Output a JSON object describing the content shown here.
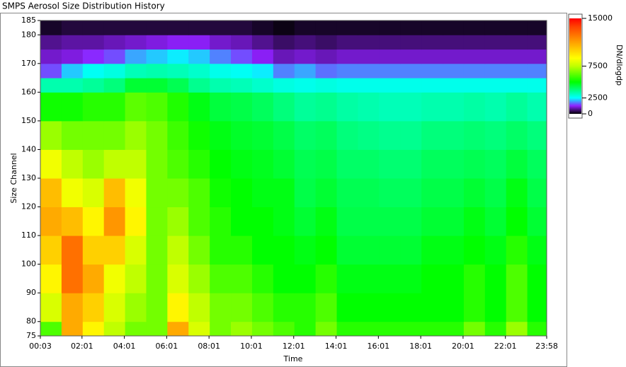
{
  "window_title": "SMPS Aerosol Size Distribution History",
  "chart_data": {
    "type": "heatmap",
    "x_label": "Time",
    "y_label": "Size Channel",
    "colorbar_label": "DN/dlogdp",
    "xlim": [
      3,
      1438
    ],
    "ylim": [
      75,
      185
    ],
    "xticks": [
      {
        "value": 3,
        "label": "00:03"
      },
      {
        "value": 121,
        "label": "02:01"
      },
      {
        "value": 241,
        "label": "04:01"
      },
      {
        "value": 361,
        "label": "06:01"
      },
      {
        "value": 481,
        "label": "08:01"
      },
      {
        "value": 601,
        "label": "10:01"
      },
      {
        "value": 721,
        "label": "12:01"
      },
      {
        "value": 841,
        "label": "14:01"
      },
      {
        "value": 961,
        "label": "16:01"
      },
      {
        "value": 1081,
        "label": "18:01"
      },
      {
        "value": 1201,
        "label": "20:01"
      },
      {
        "value": 1321,
        "label": "22:01"
      },
      {
        "value": 1438,
        "label": "23:58"
      }
    ],
    "yticks": [
      75,
      80,
      90,
      100,
      110,
      120,
      130,
      140,
      150,
      160,
      170,
      180,
      185
    ],
    "clim": [
      0,
      15000
    ],
    "cticks": [
      0,
      2500,
      7500,
      15000
    ],
    "colorscale": [
      "#000000",
      "#9020ff",
      "#00ffff",
      "#00ff80",
      "#00ff00",
      "#60ff00",
      "#c0ff00",
      "#ffff00",
      "#ffd000",
      "#ffa000",
      "#ff7000",
      "#ff4000",
      "#ff0000"
    ],
    "xbins": [
      3,
      63,
      123,
      183,
      243,
      303,
      363,
      423,
      483,
      543,
      603,
      663,
      723,
      783,
      843,
      903,
      963,
      1023,
      1083,
      1143,
      1203,
      1263,
      1323,
      1383,
      1438
    ],
    "ybins": [
      75,
      80,
      90,
      100,
      110,
      120,
      130,
      140,
      150,
      160,
      165,
      170,
      175,
      180,
      185
    ],
    "z": [
      [
        6000,
        11000,
        9000,
        7500,
        6500,
        6500,
        11000,
        8000,
        6500,
        7000,
        6500,
        6000,
        5500,
        6500,
        5500,
        5500,
        5500,
        5500,
        5500,
        5500,
        6500,
        5500,
        7000,
        5500
      ],
      [
        8000,
        11000,
        10000,
        8000,
        7000,
        6500,
        9000,
        7500,
        6500,
        6500,
        6000,
        5500,
        5500,
        6000,
        5000,
        5000,
        5000,
        5000,
        5000,
        5000,
        5500,
        5000,
        6000,
        5000
      ],
      [
        9000,
        12500,
        11000,
        8500,
        7500,
        6500,
        8000,
        7000,
        6000,
        6000,
        5500,
        5000,
        5000,
        5500,
        4800,
        4800,
        4800,
        4800,
        5000,
        5000,
        5500,
        5000,
        6000,
        5000
      ],
      [
        10000,
        12500,
        10000,
        10000,
        8000,
        6500,
        7500,
        6500,
        5500,
        5500,
        5000,
        5000,
        4800,
        5000,
        4500,
        4500,
        4500,
        4500,
        4800,
        4800,
        5000,
        4800,
        5500,
        4800
      ],
      [
        11000,
        10500,
        9000,
        11500,
        9000,
        6500,
        7000,
        6000,
        5500,
        5000,
        5000,
        4800,
        4500,
        4800,
        4300,
        4300,
        4300,
        4300,
        4500,
        4500,
        4800,
        4500,
        5000,
        4500
      ],
      [
        10500,
        8500,
        8000,
        10500,
        8500,
        6500,
        6500,
        6000,
        5200,
        5000,
        4800,
        4800,
        4300,
        4500,
        4200,
        4200,
        4100,
        4100,
        4300,
        4300,
        4500,
        4300,
        4800,
        4300
      ],
      [
        8500,
        7500,
        7000,
        7500,
        7500,
        6500,
        6000,
        5500,
        5000,
        4800,
        4700,
        4500,
        4200,
        4300,
        4000,
        4000,
        3900,
        3900,
        4100,
        4100,
        4200,
        4100,
        4400,
        4100
      ],
      [
        7000,
        6500,
        6500,
        6500,
        7000,
        6500,
        5800,
        5200,
        4800,
        4600,
        4500,
        4300,
        4000,
        4100,
        3800,
        3700,
        3600,
        3600,
        3800,
        3800,
        3900,
        3800,
        4000,
        3800
      ],
      [
        5200,
        5200,
        5500,
        5500,
        6200,
        6000,
        5400,
        4800,
        4400,
        4300,
        4100,
        3800,
        3500,
        3600,
        3400,
        3300,
        3200,
        3200,
        3300,
        3300,
        3400,
        3300,
        3500,
        3300
      ],
      [
        3300,
        3300,
        3500,
        3800,
        4500,
        4500,
        4200,
        3600,
        3300,
        3200,
        3000,
        2800,
        2700,
        2800,
        2700,
        2700,
        2700,
        2700,
        2700,
        2700,
        2700,
        2700,
        2700,
        2700
      ],
      [
        1500,
        2200,
        2600,
        2800,
        3200,
        3300,
        3200,
        3000,
        2700,
        2600,
        2400,
        1800,
        2000,
        1700,
        1800,
        1800,
        1800,
        1800,
        1800,
        1800,
        1800,
        1800,
        1800,
        1800
      ],
      [
        1000,
        1100,
        1300,
        1500,
        2000,
        2200,
        2400,
        2200,
        1800,
        1500,
        1200,
        900,
        1000,
        900,
        1000,
        1000,
        1000,
        1000,
        1000,
        1000,
        1000,
        1000,
        1000,
        1000
      ],
      [
        700,
        800,
        800,
        900,
        1000,
        1100,
        1200,
        1200,
        1000,
        900,
        700,
        500,
        600,
        500,
        600,
        600,
        600,
        600,
        600,
        600,
        600,
        600,
        600,
        600
      ],
      [
        200,
        300,
        300,
        300,
        300,
        300,
        300,
        300,
        300,
        300,
        200,
        100,
        200,
        200,
        200,
        200,
        200,
        200,
        200,
        200,
        200,
        200,
        200,
        200
      ]
    ]
  }
}
